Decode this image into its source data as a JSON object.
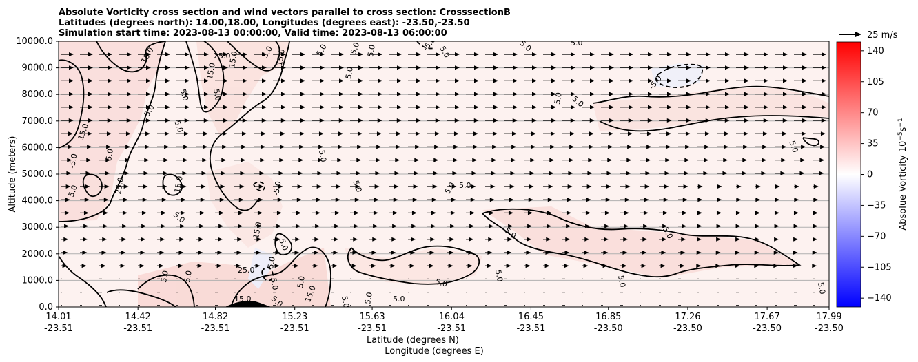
{
  "chart_data": {
    "type": "heatmap",
    "title_lines": [
      "Absolute Vorticity cross section and wind vectors parallel to cross section: CrosssectionB",
      "Latitudes (degrees north): 14.00,18.00, Longitudes (degrees east): -23.50,-23.50",
      "Simulation start time: 2023-08-13 00:00:00, Valid time: 2023-08-13 06:00:00"
    ],
    "ylabel": "Altitude (meters)",
    "xlabel_lat": "Latitude (degrees N)",
    "xlabel_lon": "Longitude (degrees E)",
    "ylim": [
      0,
      10000
    ],
    "y_ticks": [
      "0.0",
      "1000.0",
      "2000.0",
      "3000.0",
      "4000.0",
      "5000.0",
      "6000.0",
      "7000.0",
      "8000.0",
      "9000.0",
      "10000.0"
    ],
    "y_tick_values": [
      0,
      1000,
      2000,
      3000,
      4000,
      5000,
      6000,
      7000,
      8000,
      9000,
      10000
    ],
    "xlim": [
      14.01,
      17.99
    ],
    "x_ticks": [
      {
        "lat": "14.01",
        "lon": "-23.51",
        "value": 14.01
      },
      {
        "lat": "14.42",
        "lon": "-23.51",
        "value": 14.42
      },
      {
        "lat": "14.82",
        "lon": "-23.51",
        "value": 14.82
      },
      {
        "lat": "15.23",
        "lon": "-23.51",
        "value": 15.23
      },
      {
        "lat": "15.63",
        "lon": "-23.51",
        "value": 15.63
      },
      {
        "lat": "16.04",
        "lon": "-23.51",
        "value": 16.04
      },
      {
        "lat": "16.45",
        "lon": "-23.51",
        "value": 16.45
      },
      {
        "lat": "16.85",
        "lon": "-23.50",
        "value": 16.85
      },
      {
        "lat": "17.26",
        "lon": "-23.50",
        "value": 17.26
      },
      {
        "lat": "17.67",
        "lon": "-23.50",
        "value": 17.67
      },
      {
        "lat": "17.99",
        "lon": "-23.50",
        "value": 17.99
      }
    ],
    "grid": "horizontal",
    "colorbar": {
      "label": "Absolue Vorticity 10",
      "label_exp": "−5",
      "label_unit": "s",
      "label_unit_exp": "−1",
      "range": [
        -150,
        150
      ],
      "ticks": [
        "140",
        "105",
        "70",
        "35",
        "0",
        "−35",
        "−70",
        "−105",
        "−140"
      ],
      "tick_values": [
        140,
        105,
        70,
        35,
        0,
        -35,
        -70,
        -105,
        -140
      ],
      "colormap": "bwr",
      "color_low": "#0000ff",
      "color_mid": "#ffffff",
      "color_high": "#ff0000"
    },
    "quiver_key": {
      "label": "25 m/s",
      "speed": 25
    },
    "contour_levels": [
      -5.0,
      5.0,
      15.0,
      25.0
    ],
    "contour_labels": [
      "5.0",
      "-5.0",
      "15.0",
      "25.0"
    ],
    "wind_field_note": "",
    "background_color": "#fdf0ee"
  }
}
